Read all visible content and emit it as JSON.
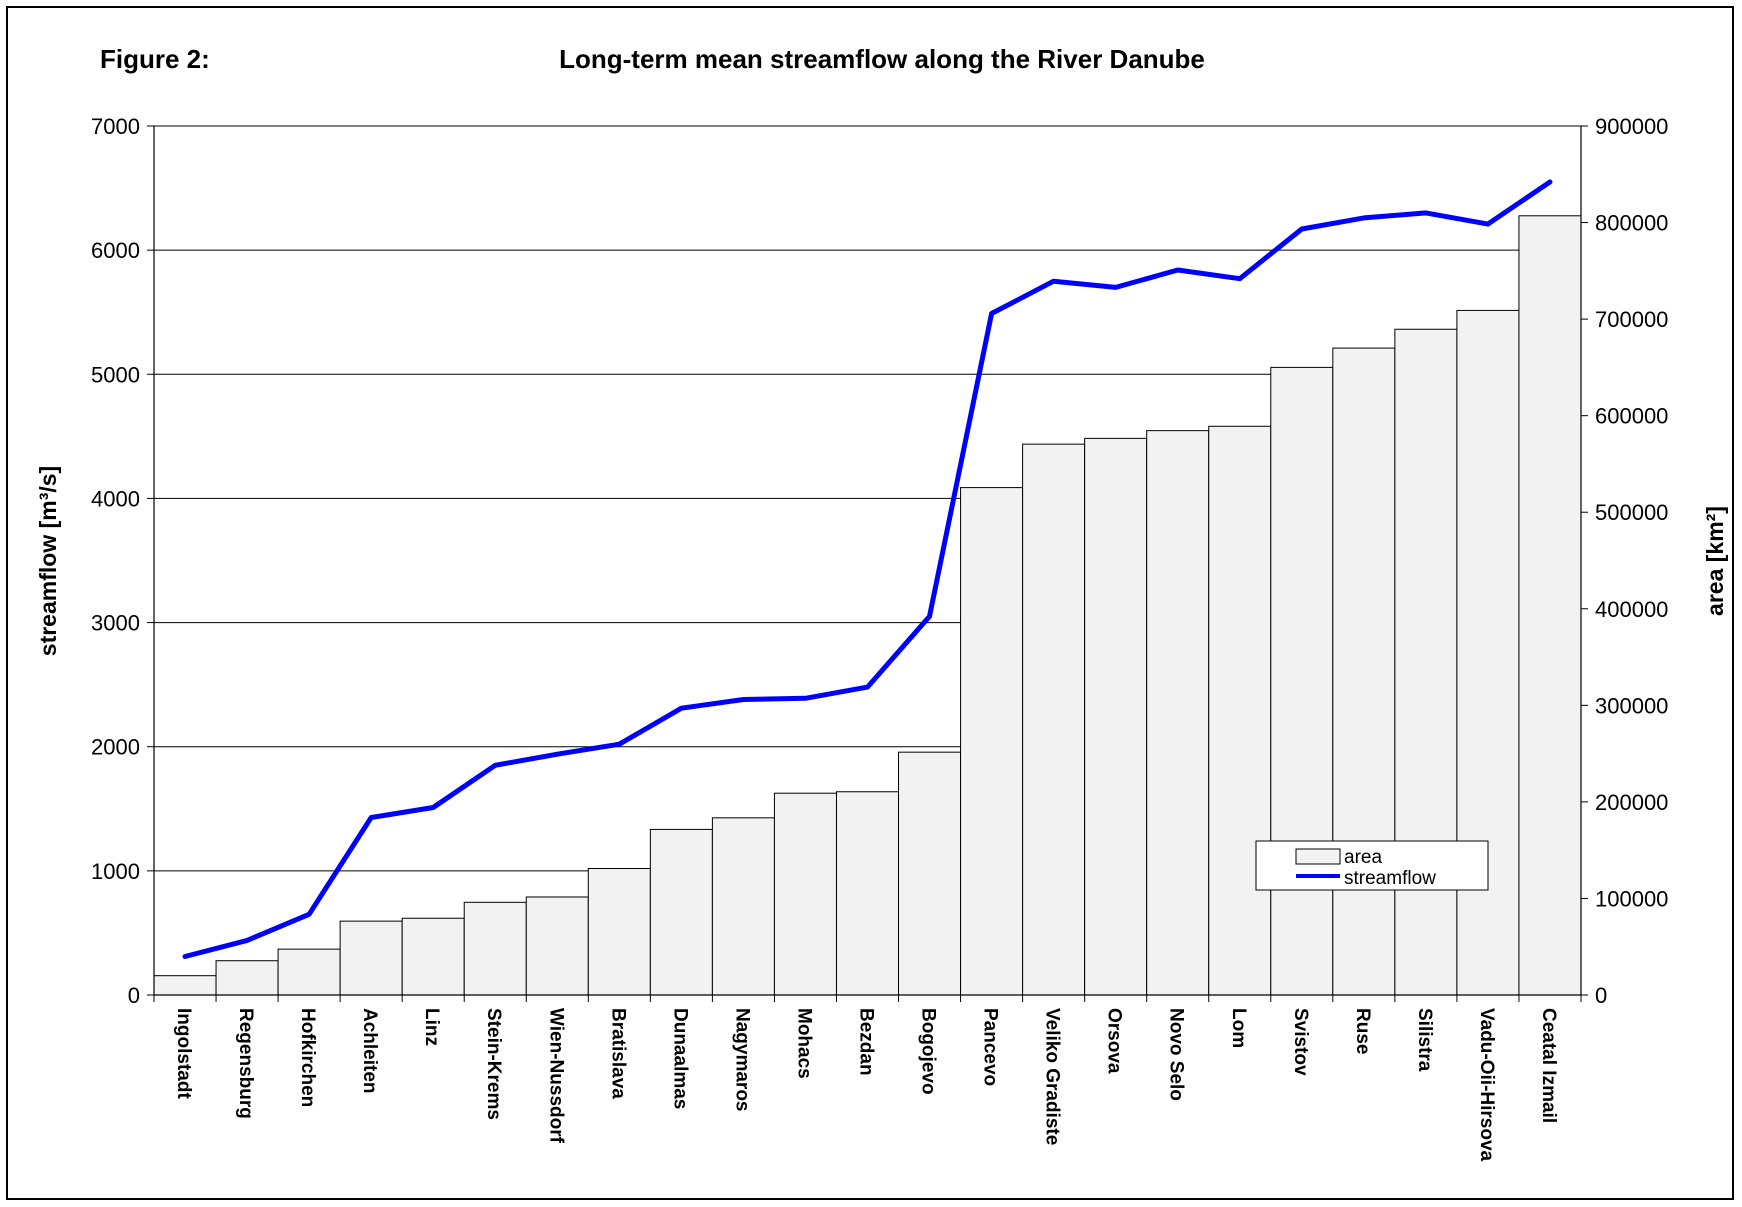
{
  "figure_label": "Figure 2:",
  "chart_data": {
    "type": "bar",
    "title": "Long-term mean streamflow along the River Danube",
    "ylabel_left": "streamflow [m³/s]",
    "ylabel_right": "area [km²]",
    "ylim_left": [
      0,
      7000
    ],
    "ylim_right": [
      0,
      900000
    ],
    "yticks_left": [
      "0",
      "1000",
      "2000",
      "3000",
      "4000",
      "5000",
      "6000",
      "7000"
    ],
    "yticks_right": [
      "0",
      "100000",
      "200000",
      "300000",
      "400000",
      "500000",
      "600000",
      "700000",
      "800000",
      "900000"
    ],
    "grid": true,
    "legend_position": "bottom-right",
    "categories": [
      "Ingolstadt",
      "Regensburg",
      "Hofkirchen",
      "Achleiten",
      "Linz",
      "Stein-Krems",
      "Wien-Nussdorf",
      "Bratislava",
      "Dunaalmas",
      "Nagymaros",
      "Mohacs",
      "Bezdan",
      "Bogojevo",
      "Pancevo",
      "Veliko Gradiste",
      "Orsova",
      "Novo Selo",
      "Lom",
      "Svistov",
      "Ruse",
      "Silistra",
      "Vadu-Oii-Hirsova",
      "Ceatal Izmail"
    ],
    "series": [
      {
        "name": "area",
        "type": "bar",
        "axis": "right",
        "color": "#f2f2f2",
        "values": [
          20000,
          35500,
          47500,
          76500,
          79500,
          96000,
          101500,
          131000,
          171500,
          183500,
          209000,
          210500,
          251500,
          525500,
          570500,
          576500,
          584500,
          589000,
          650000,
          670000,
          689500,
          709000,
          807000
        ]
      },
      {
        "name": "streamflow",
        "type": "line",
        "axis": "left",
        "color": "#0000ff",
        "values": [
          310,
          440,
          650,
          1430,
          1510,
          1850,
          1940,
          2020,
          2310,
          2380,
          2390,
          2480,
          3050,
          5490,
          5750,
          5700,
          5840,
          5770,
          6170,
          6260,
          6300,
          6210,
          6550
        ]
      }
    ]
  }
}
